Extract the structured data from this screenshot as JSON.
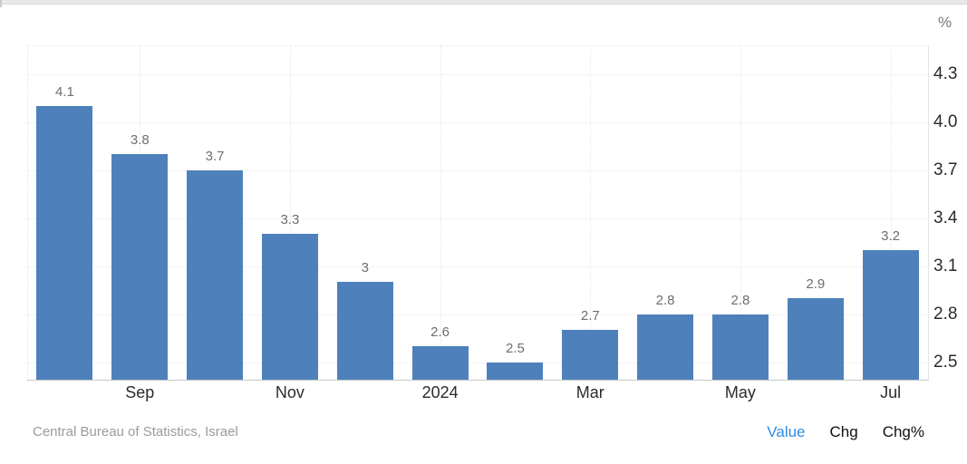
{
  "header": {
    "unit_label": "%"
  },
  "footer": {
    "source": "Central Bureau of Statistics, Israel",
    "links": [
      {
        "id": "value",
        "label": "Value",
        "active": true
      },
      {
        "id": "chg",
        "label": "Chg",
        "active": false
      },
      {
        "id": "chgpct",
        "label": "Chg%",
        "active": false
      }
    ]
  },
  "colors": {
    "bar": "#4e81bc",
    "active_link": "#2e8ce6",
    "grid": "#e7e7e7",
    "axis_line": "#c9c9c9",
    "plot_border": "#e3e3e3",
    "value_label_text": "#6e6e6e",
    "axis_text": "#2b2b2b",
    "unit_text": "#777777",
    "source_text": "#9b9b9b"
  },
  "chart_data": {
    "type": "bar",
    "title": "",
    "xlabel": "",
    "ylabel": "%",
    "values": [
      4.1,
      3.8,
      3.7,
      3.3,
      3,
      2.6,
      2.5,
      2.7,
      2.8,
      2.8,
      2.9,
      3.2
    ],
    "bar_labels": [
      "4.1",
      "3.8",
      "3.7",
      "3.3",
      "3",
      "2.6",
      "2.5",
      "2.7",
      "2.8",
      "2.8",
      "2.9",
      "3.2"
    ],
    "x_tick_labels": [
      "Sep",
      "Nov",
      "2024",
      "Mar",
      "May",
      "Jul"
    ],
    "x_tick_bar_indices": [
      1,
      3,
      5,
      7,
      9,
      11
    ],
    "y_ticks": [
      {
        "value": 4.3,
        "label": "4.3"
      },
      {
        "value": 4.0,
        "label": "4.0"
      },
      {
        "value": 3.7,
        "label": "3.7"
      },
      {
        "value": 3.4,
        "label": "3.4"
      },
      {
        "value": 3.1,
        "label": "3.1"
      },
      {
        "value": 2.8,
        "label": "2.8"
      },
      {
        "value": 2.5,
        "label": "2.5"
      }
    ],
    "ylim": [
      2.39,
      4.48
    ],
    "grid": true,
    "legend_position": "none",
    "source": "Central Bureau of Statistics, Israel"
  }
}
